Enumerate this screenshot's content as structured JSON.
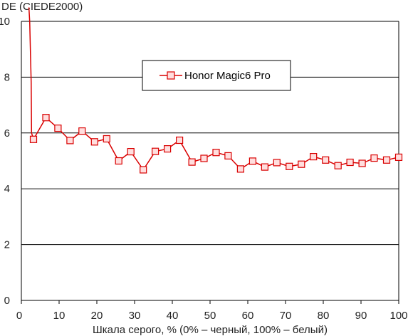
{
  "chart_data": {
    "type": "line",
    "ylabel": "DE (CIEDE2000)",
    "xlabel": "Шкала серого, % (0% – черный, 100% – белый)",
    "xlim": [
      0,
      100
    ],
    "ylim": [
      0,
      10
    ],
    "x_ticks": [
      "0",
      "10",
      "20",
      "30",
      "40",
      "50",
      "60",
      "70",
      "80",
      "90",
      "100"
    ],
    "y_ticks": [
      "0",
      "2",
      "4",
      "6",
      "8",
      "10"
    ],
    "grid": "horizontal",
    "legend_position": "top-center",
    "series": [
      {
        "name": "Honor Magic6 Pro",
        "color": "#d90000",
        "marker_fill": "#ffdede",
        "line_points": [
          [
            2.0,
            10.5
          ],
          [
            2.2,
            10.0
          ],
          [
            2.6,
            7.8
          ],
          [
            2.7,
            6.0
          ],
          [
            3.2,
            5.78
          ],
          [
            3.4,
            5.82
          ]
        ],
        "x": [
          3.2,
          6.5,
          9.7,
          12.9,
          16.1,
          19.4,
          22.6,
          25.8,
          29.0,
          32.3,
          35.5,
          38.7,
          41.9,
          45.2,
          48.4,
          51.6,
          54.8,
          58.1,
          61.3,
          64.5,
          67.7,
          71.0,
          74.2,
          77.4,
          80.6,
          83.9,
          87.1,
          90.3,
          93.5,
          96.8,
          100.0
        ],
        "values": [
          5.77,
          6.55,
          6.17,
          5.73,
          6.07,
          5.68,
          5.79,
          5.0,
          5.33,
          4.68,
          5.34,
          5.43,
          5.74,
          4.96,
          5.09,
          5.3,
          5.18,
          4.71,
          4.99,
          4.78,
          4.94,
          4.8,
          4.88,
          5.15,
          5.03,
          4.83,
          4.95,
          4.91,
          5.1,
          5.03,
          5.13
        ]
      }
    ]
  }
}
